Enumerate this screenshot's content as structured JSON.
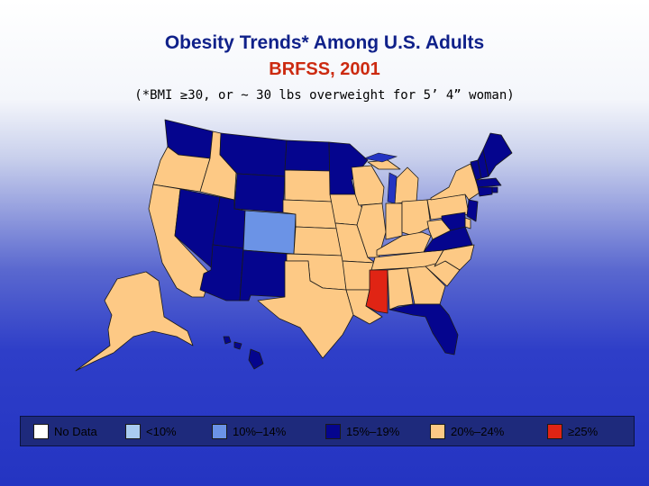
{
  "title": "Obesity Trends* Among U.S. Adults",
  "subtitle": "BRFSS, 2001",
  "note": "(*BMI ≥30, or ~ 30 lbs overweight for 5’ 4” woman)",
  "colors": {
    "no_data": "#ffffff",
    "lt10": "#a9cbf0",
    "p10_14": "#6b93e6",
    "p15_19": "#05058e",
    "p20_24": "#fdc985",
    "ge25": "#e02414"
  },
  "legend": [
    {
      "label": "No Data",
      "color": "#ffffff"
    },
    {
      "label": "<10%",
      "color": "#a9cbf0"
    },
    {
      "label": "10%–14%",
      "color": "#6b93e6"
    },
    {
      "label": "15%–19%",
      "color": "#05058e"
    },
    {
      "label": "20%–24%",
      "color": "#fdc985"
    },
    {
      "label": "≥25%",
      "color": "#e02414"
    }
  ],
  "states": {
    "WA": "15%–19%",
    "OR": "20%–24%",
    "CA": "20%–24%",
    "ID": "20%–24%",
    "NV": "15%–19%",
    "MT": "15%–19%",
    "WY": "15%–19%",
    "UT": "15%–19%",
    "AZ": "15%–19%",
    "CO": "10%–14%",
    "NM": "15%–19%",
    "ND": "15%–19%",
    "SD": "20%–24%",
    "NE": "20%–24%",
    "KS": "20%–24%",
    "OK": "20%–24%",
    "TX": "20%–24%",
    "MN": "15%–19%",
    "IA": "20%–24%",
    "MO": "20%–24%",
    "AR": "20%–24%",
    "LA": "20%–24%",
    "WI": "20%–24%",
    "IL": "20%–24%",
    "MI": "20%–24%",
    "IN": "20%–24%",
    "OH": "20%–24%",
    "KY": "20%–24%",
    "TN": "20%–24%",
    "MS": "≥25%",
    "AL": "20%–24%",
    "GA": "20%–24%",
    "FL": "15%–19%",
    "SC": "20%–24%",
    "NC": "20%–24%",
    "VA": "15%–19%",
    "WV": "20%–24%",
    "PA": "20%–24%",
    "NY": "20%–24%",
    "VT": "15%–19%",
    "NH": "15%–19%",
    "ME": "15%–19%",
    "MA": "15%–19%",
    "RI": "15%–19%",
    "CT": "15%–19%",
    "NJ": "15%–19%",
    "DE": "20%–24%",
    "MD": "15%–19%",
    "AK": "20%–24%",
    "HI": "15%–19%"
  }
}
